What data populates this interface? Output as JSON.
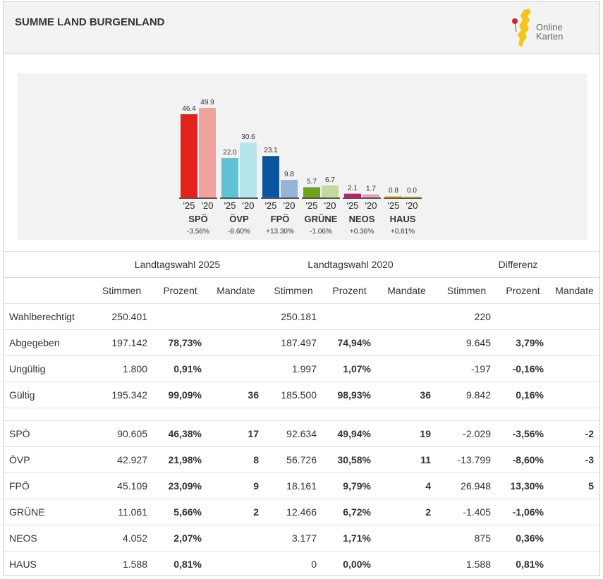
{
  "header": {
    "title": "SUMME LAND BURGENLAND",
    "logo_line1": "Online",
    "logo_line2": "Karten",
    "logo_icon": "burgenland-map-pin-icon"
  },
  "chart_data": {
    "type": "bar",
    "categories": [
      "SPÖ",
      "ÖVP",
      "FPÖ",
      "GRÜNE",
      "NEOS",
      "HAUS"
    ],
    "category_diffs": [
      "-3.56%",
      "-8.60%",
      "+13.30%",
      "-1.06%",
      "+0.36%",
      "+0.81%"
    ],
    "series": [
      {
        "year_label": "'25",
        "values": [
          46.4,
          22.0,
          23.1,
          5.7,
          2.1,
          0.8
        ]
      },
      {
        "year_label": "'20",
        "values": [
          49.9,
          30.6,
          9.8,
          6.7,
          1.7,
          0.0
        ]
      }
    ],
    "value_labels": [
      [
        "46.4",
        "22.0",
        "23.1",
        "5.7",
        "2.1",
        "0.8"
      ],
      [
        "49.9",
        "30.6",
        "9.8",
        "6.7",
        "1.7",
        "0.0"
      ]
    ],
    "colors": {
      "2025": [
        "#e3231b",
        "#5fc3d4",
        "#0a55a0",
        "#6ea320",
        "#c21e6d",
        "#f2cc1e"
      ],
      "2020": [
        "#f0a39e",
        "#b6e4ec",
        "#93b4d6",
        "#c3d99e",
        "#e39fbf",
        "#f8e38d"
      ]
    },
    "ylim": [
      0,
      55
    ]
  },
  "table": {
    "group_headers": [
      "Landtagswahl 2025",
      "Landtagswahl 2020",
      "Differenz"
    ],
    "sub_headers": [
      "Stimmen",
      "Prozent",
      "Mandate",
      "Stimmen",
      "Prozent",
      "Mandate",
      "Stimmen",
      "Prozent",
      "Mandate"
    ],
    "summary_rows": [
      {
        "label": "Wahlberechtigt",
        "cells": [
          "250.401",
          "",
          "",
          "250.181",
          "",
          "",
          "220",
          "",
          ""
        ]
      },
      {
        "label": "Abgegeben",
        "cells": [
          "197.142",
          "78,73%",
          "",
          "187.497",
          "74,94%",
          "",
          "9.645",
          "3,79%",
          ""
        ]
      },
      {
        "label": "Ungültig",
        "cells": [
          "1.800",
          "0,91%",
          "",
          "1.997",
          "1,07%",
          "",
          "-197",
          "-0,16%",
          ""
        ]
      },
      {
        "label": "Gültig",
        "cells": [
          "195.342",
          "99,09%",
          "36",
          "185.500",
          "98,93%",
          "36",
          "9.842",
          "0,16%",
          ""
        ]
      }
    ],
    "party_rows": [
      {
        "label": "SPÖ",
        "cells": [
          "90.605",
          "46,38%",
          "17",
          "92.634",
          "49,94%",
          "19",
          "-2.029",
          "-3,56%",
          "-2"
        ]
      },
      {
        "label": "ÖVP",
        "cells": [
          "42.927",
          "21,98%",
          "8",
          "56.726",
          "30,58%",
          "11",
          "-13.799",
          "-8,60%",
          "-3"
        ]
      },
      {
        "label": "FPÖ",
        "cells": [
          "45.109",
          "23,09%",
          "9",
          "18.161",
          "9,79%",
          "4",
          "26.948",
          "13,30%",
          "5"
        ]
      },
      {
        "label": "GRÜNE",
        "cells": [
          "11.061",
          "5,66%",
          "2",
          "12.466",
          "6,72%",
          "2",
          "-1.405",
          "-1,06%",
          ""
        ]
      },
      {
        "label": "NEOS",
        "cells": [
          "4.052",
          "2,07%",
          "",
          "3.177",
          "1,71%",
          "",
          "875",
          "0,36%",
          ""
        ]
      },
      {
        "label": "HAUS",
        "cells": [
          "1.588",
          "0,81%",
          "",
          "0",
          "0,00%",
          "",
          "1.588",
          "0,81%",
          ""
        ]
      }
    ]
  }
}
